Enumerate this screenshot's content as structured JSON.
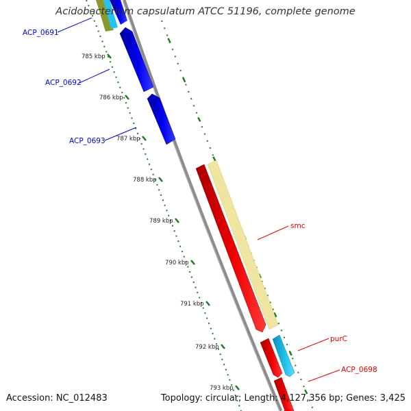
{
  "title": "Acidobacterium capsulatum ATCC 51196, complete genome",
  "footer": {
    "accession": "Accession: NC_012483",
    "stats": "Topology: circular; Length: 4,127,356 bp; Genes: 3,425"
  },
  "colors": {
    "backbone": "#8c8c8c",
    "ticks": "#1f7a1f",
    "forward_gene": "#0000ee",
    "reverse_gene": "#ee0000",
    "cds_band": "#efe4a0",
    "rna_feature": "#22c4ee",
    "label_forward": "#0000cc",
    "label_reverse": "#dd0000"
  },
  "ruler": {
    "ticks": [
      "785 kbp",
      "786 kbp",
      "787 kbp",
      "788 kbp",
      "789 kbp",
      "790 kbp",
      "791 kbp",
      "792 kbp",
      "793 kbp"
    ]
  },
  "genes": [
    {
      "name": "ACP_0691",
      "strand": "forward",
      "labeled": true
    },
    {
      "name": "ACP_0692",
      "strand": "forward",
      "labeled": true
    },
    {
      "name": "ACP_0693",
      "strand": "forward",
      "labeled": true
    },
    {
      "name": "smc",
      "strand": "reverse",
      "labeled": true
    },
    {
      "name": "purC",
      "strand": "reverse",
      "labeled": true
    },
    {
      "name": "ACP_0698",
      "strand": "reverse",
      "labeled": true
    }
  ]
}
